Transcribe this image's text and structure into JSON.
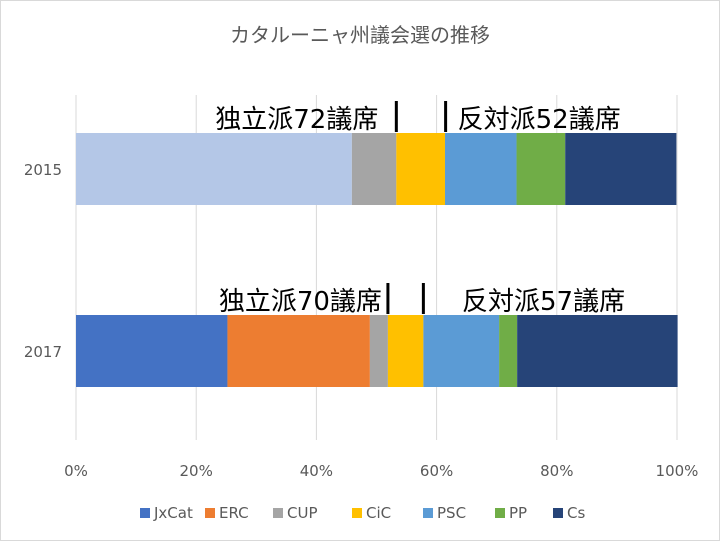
{
  "chart_data": {
    "type": "bar",
    "orientation": "horizontal",
    "stacked": "percent",
    "title": "カタルーニャ州議会選の推移",
    "categories": [
      "2015",
      "2017"
    ],
    "xlim": [
      0,
      100
    ],
    "xticks": [
      "0%",
      "20%",
      "40%",
      "60%",
      "80%",
      "100%"
    ],
    "grid": true,
    "legend_position": "bottom",
    "series": [
      {
        "name": "JxCat",
        "color": "#4472C4",
        "values": [
          0,
          25.2
        ]
      },
      {
        "name": "ERC",
        "color": "#ED7D31",
        "values": [
          0,
          23.7
        ]
      },
      {
        "name": "",
        "color": "#B4C7E7",
        "values": [
          45.9,
          0
        ],
        "in_legend": false
      },
      {
        "name": "CUP",
        "color": "#A5A5A5",
        "values": [
          7.4,
          3.0
        ]
      },
      {
        "name": "CiC",
        "color": "#FFC000",
        "values": [
          8.1,
          5.9
        ]
      },
      {
        "name": "PSC",
        "color": "#5B9BD5",
        "values": [
          11.9,
          12.6
        ]
      },
      {
        "name": "PP",
        "color": "#70AD47",
        "values": [
          8.1,
          3.0
        ]
      },
      {
        "name": "Cs",
        "color": "#264478",
        "values": [
          18.5,
          26.7
        ]
      }
    ],
    "legend_order": [
      "JxCat",
      "ERC",
      "CUP",
      "CiC",
      "PSC",
      "PP",
      "Cs"
    ],
    "annotations": [
      {
        "category": "2015",
        "left_text": "独立派72議席",
        "right_text": "反対派52議席",
        "marker_at": [
          53.3,
          61.5
        ]
      },
      {
        "category": "2017",
        "left_text": "独立派70議席",
        "right_text": "反対派57議席",
        "marker_at": [
          51.9,
          57.8
        ]
      }
    ]
  }
}
